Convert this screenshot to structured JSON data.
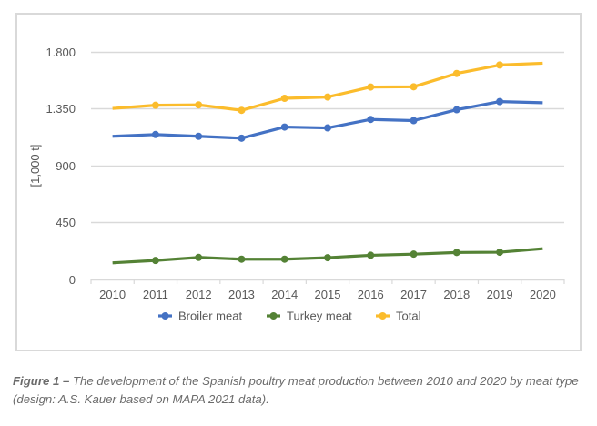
{
  "chart_data": {
    "type": "line",
    "title": "",
    "xlabel": "",
    "ylabel": "[1,000 t]",
    "categories": [
      "2010",
      "2011",
      "2012",
      "2013",
      "2014",
      "2015",
      "2016",
      "2017",
      "2018",
      "2019",
      "2020"
    ],
    "ylim": [
      0,
      1800
    ],
    "yticks": [
      0,
      450,
      900,
      1350,
      1800
    ],
    "ytick_labels": [
      "0",
      "450",
      "900",
      "1.350",
      "1.800"
    ],
    "grid": true,
    "legend_position": "bottom",
    "series": [
      {
        "name": "Broiler meat",
        "color": "#4472C4",
        "values": [
          1130,
          1144,
          1130,
          1115,
          1203,
          1196,
          1263,
          1254,
          1340,
          1404,
          1395
        ]
      },
      {
        "name": "Turkey meat",
        "color": "#548235",
        "values": [
          131,
          150,
          174,
          160,
          160,
          172,
          191,
          200,
          213,
          215,
          243
        ]
      },
      {
        "name": "Total",
        "color": "#FBBC2C",
        "values": [
          1350,
          1375,
          1378,
          1335,
          1430,
          1440,
          1519,
          1521,
          1626,
          1693,
          1707
        ]
      }
    ]
  },
  "caption": {
    "label": "Figure 1 –",
    "text": " The development of the Spanish poultry meat production between 2010 and 2020 by meat type (design: A.S. Kauer based on MAPA 2021 data)."
  }
}
